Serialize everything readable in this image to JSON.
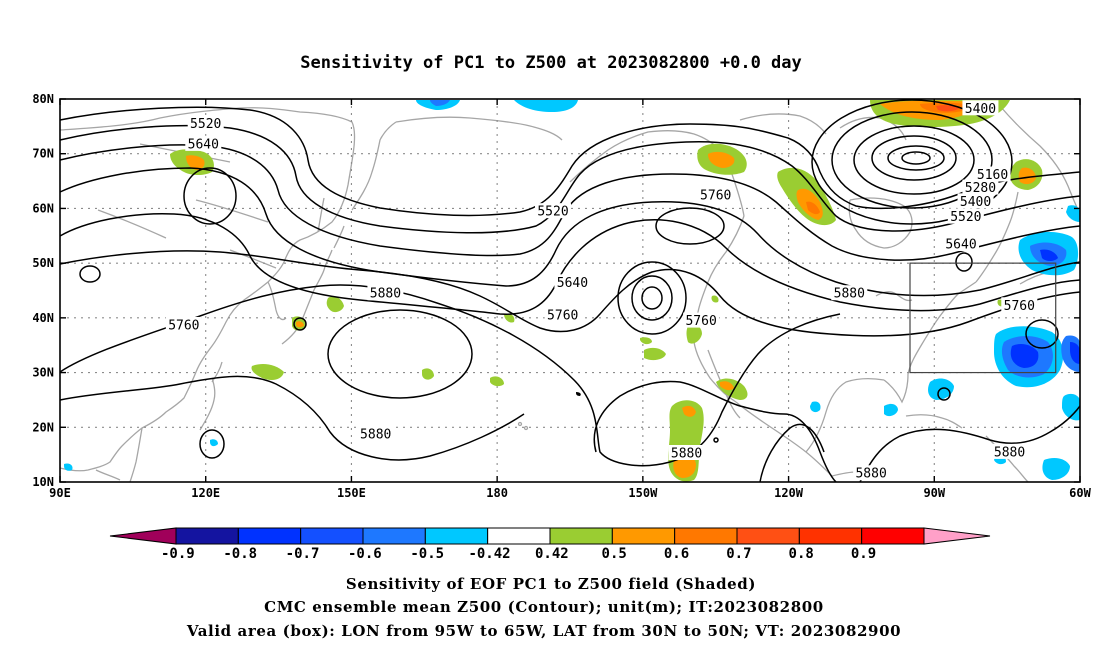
{
  "title": "Sensitivity of PC1 to Z500 at 2023082800 +0.0 day",
  "map": {
    "lon_range": [
      90,
      300
    ],
    "lat_range": [
      10,
      80
    ],
    "lon_ticks": [
      {
        "lon": 90,
        "label": "90E"
      },
      {
        "lon": 120,
        "label": "120E"
      },
      {
        "lon": 150,
        "label": "150E"
      },
      {
        "lon": 180,
        "label": "180"
      },
      {
        "lon": 210,
        "label": "150W"
      },
      {
        "lon": 240,
        "label": "120W"
      },
      {
        "lon": 270,
        "label": "90W"
      },
      {
        "lon": 300,
        "label": "60W"
      }
    ],
    "lat_ticks": [
      {
        "lat": 10,
        "label": "10N"
      },
      {
        "lat": 20,
        "label": "20N"
      },
      {
        "lat": 30,
        "label": "30N"
      },
      {
        "lat": 40,
        "label": "40N"
      },
      {
        "lat": 50,
        "label": "50N"
      },
      {
        "lat": 60,
        "label": "60N"
      },
      {
        "lat": 70,
        "label": "70N"
      },
      {
        "lat": 80,
        "label": "80N"
      }
    ],
    "grid": "dotted",
    "valid_box": {
      "lon_min": 265,
      "lon_max": 295,
      "lat_min": 30,
      "lat_max": 50
    },
    "contour_labels": [
      {
        "text": "5520",
        "lon": 120,
        "lat": 75.5
      },
      {
        "text": "5640",
        "lon": 119.5,
        "lat": 71.8
      },
      {
        "text": "5520",
        "lon": 191.5,
        "lat": 59.5
      },
      {
        "text": "5760",
        "lon": 225,
        "lat": 62.5
      },
      {
        "text": "5400",
        "lon": 279.5,
        "lat": 78.3
      },
      {
        "text": "5160",
        "lon": 282,
        "lat": 66.2
      },
      {
        "text": "5280",
        "lon": 279.5,
        "lat": 63.8
      },
      {
        "text": "5400",
        "lon": 278.5,
        "lat": 61.3
      },
      {
        "text": "5520",
        "lon": 276.5,
        "lat": 58.5
      },
      {
        "text": "5640",
        "lon": 275.5,
        "lat": 53.5
      },
      {
        "text": "5640",
        "lon": 195.5,
        "lat": 46.5
      },
      {
        "text": "5760",
        "lon": 193.5,
        "lat": 40.5
      },
      {
        "text": "5760",
        "lon": 222,
        "lat": 39.5
      },
      {
        "text": "5880",
        "lon": 252.5,
        "lat": 44.5
      },
      {
        "text": "5760",
        "lon": 287.5,
        "lat": 42.3
      },
      {
        "text": "5880",
        "lon": 157,
        "lat": 44.5
      },
      {
        "text": "5760",
        "lon": 115.5,
        "lat": 38.7
      },
      {
        "text": "5880",
        "lon": 155,
        "lat": 18.8
      },
      {
        "text": "5880",
        "lon": 219,
        "lat": 15.3
      },
      {
        "text": "5880",
        "lon": 257,
        "lat": 11.6
      },
      {
        "text": "5880",
        "lon": 285.5,
        "lat": 15.5
      }
    ]
  },
  "colorbar": {
    "colors": [
      "#a0005a",
      "#1414a0",
      "#0032ff",
      "#1450ff",
      "#1e78ff",
      "#00c8ff",
      "#ffffff",
      "#9acd32",
      "#ff9900",
      "#ff7800",
      "#ff5014",
      "#ff3200",
      "#ff0000",
      "#ffa0c8"
    ],
    "labels": [
      "-0.9",
      "-0.8",
      "-0.7",
      "-0.6",
      "-0.5",
      "-0.42",
      "0.42",
      "0.5",
      "0.6",
      "0.7",
      "0.8",
      "0.9"
    ]
  },
  "captions": [
    "Sensitivity of EOF PC1 to Z500 field (Shaded)",
    "CMC ensemble mean Z500 (Contour); unit(m); IT:2023082800",
    "Valid area (box): LON from 95W to 65W, LAT from 30N to 50N; VT: 2023082900"
  ]
}
